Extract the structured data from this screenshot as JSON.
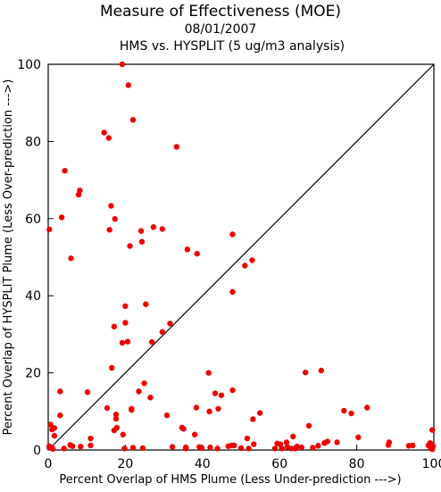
{
  "chart_data": {
    "type": "scatter",
    "title": "Measure of Effectiveness (MOE)",
    "subtitles": [
      "08/01/2007",
      "HMS vs. HYSPLIT  (5 ug/m3 analysis)"
    ],
    "xlabel": "Percent Overlap of HMS Plume (Less Under-prediction --->)",
    "ylabel": "Percent Overlap of HYSPLIT Plume (Less Over-prediction --->)",
    "xlim": [
      0,
      100
    ],
    "ylim": [
      0,
      100
    ],
    "xticks": [
      "0",
      "20",
      "40",
      "60",
      "80",
      "100"
    ],
    "yticks": [
      "0",
      "20",
      "40",
      "60",
      "80",
      "100"
    ],
    "grid": false,
    "reference_line": "y = x",
    "point_color": "#ee0000",
    "series": [
      {
        "points": [
          [
            0.3,
            57.2
          ],
          [
            0.6,
            6.6
          ],
          [
            1.0,
            5.3
          ],
          [
            0.3,
            1.0
          ],
          [
            0.3,
            0.6
          ],
          [
            1.0,
            0.6
          ],
          [
            1.2,
            0.3
          ],
          [
            1.6,
            5.7
          ],
          [
            1.6,
            3.7
          ],
          [
            3.1,
            15.2
          ],
          [
            3.1,
            9.0
          ],
          [
            3.5,
            60.3
          ],
          [
            4.3,
            72.4
          ],
          [
            4.1,
            0.4
          ],
          [
            5.9,
            49.7
          ],
          [
            5.7,
            1.3
          ],
          [
            6.3,
            1.0
          ],
          [
            7.9,
            66.2
          ],
          [
            8.2,
            67.3
          ],
          [
            8.4,
            0.9
          ],
          [
            10.2,
            15.0
          ],
          [
            11.0,
            3.0
          ],
          [
            11.0,
            1.2
          ],
          [
            14.5,
            82.3
          ],
          [
            15.3,
            10.9
          ],
          [
            15.7,
            80.9
          ],
          [
            15.9,
            57.1
          ],
          [
            16.3,
            63.3
          ],
          [
            16.5,
            21.3
          ],
          [
            17.1,
            5.1
          ],
          [
            17.1,
            32.0
          ],
          [
            17.3,
            59.9
          ],
          [
            17.6,
            9.2
          ],
          [
            17.6,
            8.1
          ],
          [
            17.8,
            5.8
          ],
          [
            19.2,
            100.0
          ],
          [
            19.2,
            27.8
          ],
          [
            19.4,
            4.0
          ],
          [
            19.8,
            0.4
          ],
          [
            20.0,
            37.3
          ],
          [
            20.0,
            33.0
          ],
          [
            20.6,
            28.1
          ],
          [
            20.8,
            94.6
          ],
          [
            21.2,
            52.9
          ],
          [
            21.6,
            10.7
          ],
          [
            21.6,
            10.4
          ],
          [
            22.0,
            85.6
          ],
          [
            22.0,
            0.6
          ],
          [
            23.5,
            15.2
          ],
          [
            24.1,
            56.8
          ],
          [
            24.3,
            54.0
          ],
          [
            24.5,
            0.5
          ],
          [
            24.9,
            17.3
          ],
          [
            25.3,
            37.8
          ],
          [
            26.5,
            13.6
          ],
          [
            26.9,
            28.0
          ],
          [
            27.3,
            57.8
          ],
          [
            29.6,
            57.3
          ],
          [
            29.6,
            30.6
          ],
          [
            30.8,
            9.0
          ],
          [
            31.6,
            32.8
          ],
          [
            32.2,
            0.8
          ],
          [
            33.3,
            78.6
          ],
          [
            34.7,
            5.8
          ],
          [
            35.1,
            5.5
          ],
          [
            35.7,
            0.4
          ],
          [
            35.7,
            0.7
          ],
          [
            36.1,
            52.0
          ],
          [
            38.0,
            4.0
          ],
          [
            38.4,
            11.0
          ],
          [
            38.6,
            50.9
          ],
          [
            39.2,
            0.8
          ],
          [
            39.8,
            0.5
          ],
          [
            41.6,
            20.0
          ],
          [
            41.8,
            10.0
          ],
          [
            42.0,
            0.7
          ],
          [
            43.3,
            14.7
          ],
          [
            43.9,
            0.4
          ],
          [
            44.1,
            10.7
          ],
          [
            44.9,
            14.2
          ],
          [
            46.7,
            1.0
          ],
          [
            47.6,
            1.2
          ],
          [
            47.8,
            41.0
          ],
          [
            47.8,
            15.5
          ],
          [
            47.8,
            55.9
          ],
          [
            48.2,
            1.2
          ],
          [
            50.0,
            0.5
          ],
          [
            51.0,
            47.8
          ],
          [
            51.6,
            3.0
          ],
          [
            52.0,
            0.4
          ],
          [
            52.9,
            49.2
          ],
          [
            53.1,
            8.0
          ],
          [
            53.3,
            1.5
          ],
          [
            54.9,
            9.6
          ],
          [
            58.8,
            0.4
          ],
          [
            59.4,
            1.7
          ],
          [
            60.2,
            1.5
          ],
          [
            60.6,
            0.4
          ],
          [
            61.8,
            2.0
          ],
          [
            62.0,
            0.8
          ],
          [
            63.1,
            0.4
          ],
          [
            63.5,
            3.5
          ],
          [
            64.1,
            0.4
          ],
          [
            64.5,
            0.9
          ],
          [
            65.7,
            0.7
          ],
          [
            66.7,
            20.1
          ],
          [
            67.6,
            6.3
          ],
          [
            68.6,
            0.6
          ],
          [
            70.0,
            1.1
          ],
          [
            70.8,
            20.6
          ],
          [
            71.6,
            1.8
          ],
          [
            72.4,
            2.2
          ],
          [
            74.9,
            2.0
          ],
          [
            76.7,
            10.2
          ],
          [
            78.6,
            9.5
          ],
          [
            80.4,
            3.3
          ],
          [
            82.7,
            11.0
          ],
          [
            88.2,
            1.3
          ],
          [
            88.4,
            2.0
          ],
          [
            93.5,
            1.1
          ],
          [
            94.5,
            1.2
          ],
          [
            98.6,
            1.2
          ],
          [
            99.0,
            1.8
          ],
          [
            99.2,
            0.5
          ],
          [
            99.4,
            1.5
          ],
          [
            99.6,
            5.2
          ],
          [
            99.6,
            0.2
          ],
          [
            99.8,
            1.0
          ]
        ]
      }
    ]
  }
}
